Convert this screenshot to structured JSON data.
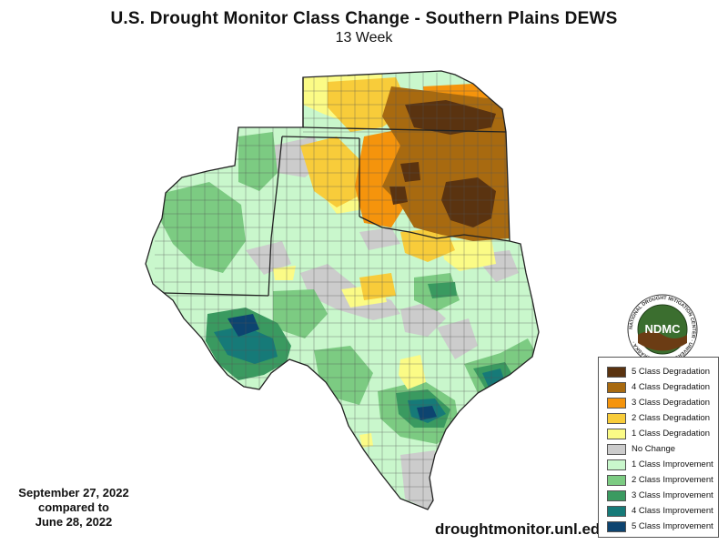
{
  "map": {
    "title": "U.S. Drought Monitor Class Change - Southern Plains DEWS",
    "subtitle": "13 Week",
    "date_current": "September 27, 2022",
    "compared_text": "compared to",
    "date_previous": "June 28, 2022",
    "source_url": "droughtmonitor.unl.edu",
    "logo_text": "NDMC",
    "logo_ring_text": "NATIONAL DROUGHT MITIGATION CENTER · UNIVERSITY OF NEBRASKA ·"
  },
  "legend": {
    "items": [
      {
        "label": "5 Class Degradation",
        "color": "#5a3310"
      },
      {
        "label": "4 Class Degradation",
        "color": "#a86a10"
      },
      {
        "label": "3 Class Degradation",
        "color": "#f5940c"
      },
      {
        "label": "2 Class Degradation",
        "color": "#f8cc3a"
      },
      {
        "label": "1 Class Degradation",
        "color": "#fbfb86"
      },
      {
        "label": "No Change",
        "color": "#cccccc"
      },
      {
        "label": "1 Class Improvement",
        "color": "#c9f7cc"
      },
      {
        "label": "2 Class Improvement",
        "color": "#7ccb82"
      },
      {
        "label": "3 Class Improvement",
        "color": "#3a9a60"
      },
      {
        "label": "4 Class Improvement",
        "color": "#167a78"
      },
      {
        "label": "5 Class Improvement",
        "color": "#0d4470"
      }
    ]
  },
  "region_outline": {
    "fill": "#c9f7cc",
    "stroke": "#222222"
  }
}
